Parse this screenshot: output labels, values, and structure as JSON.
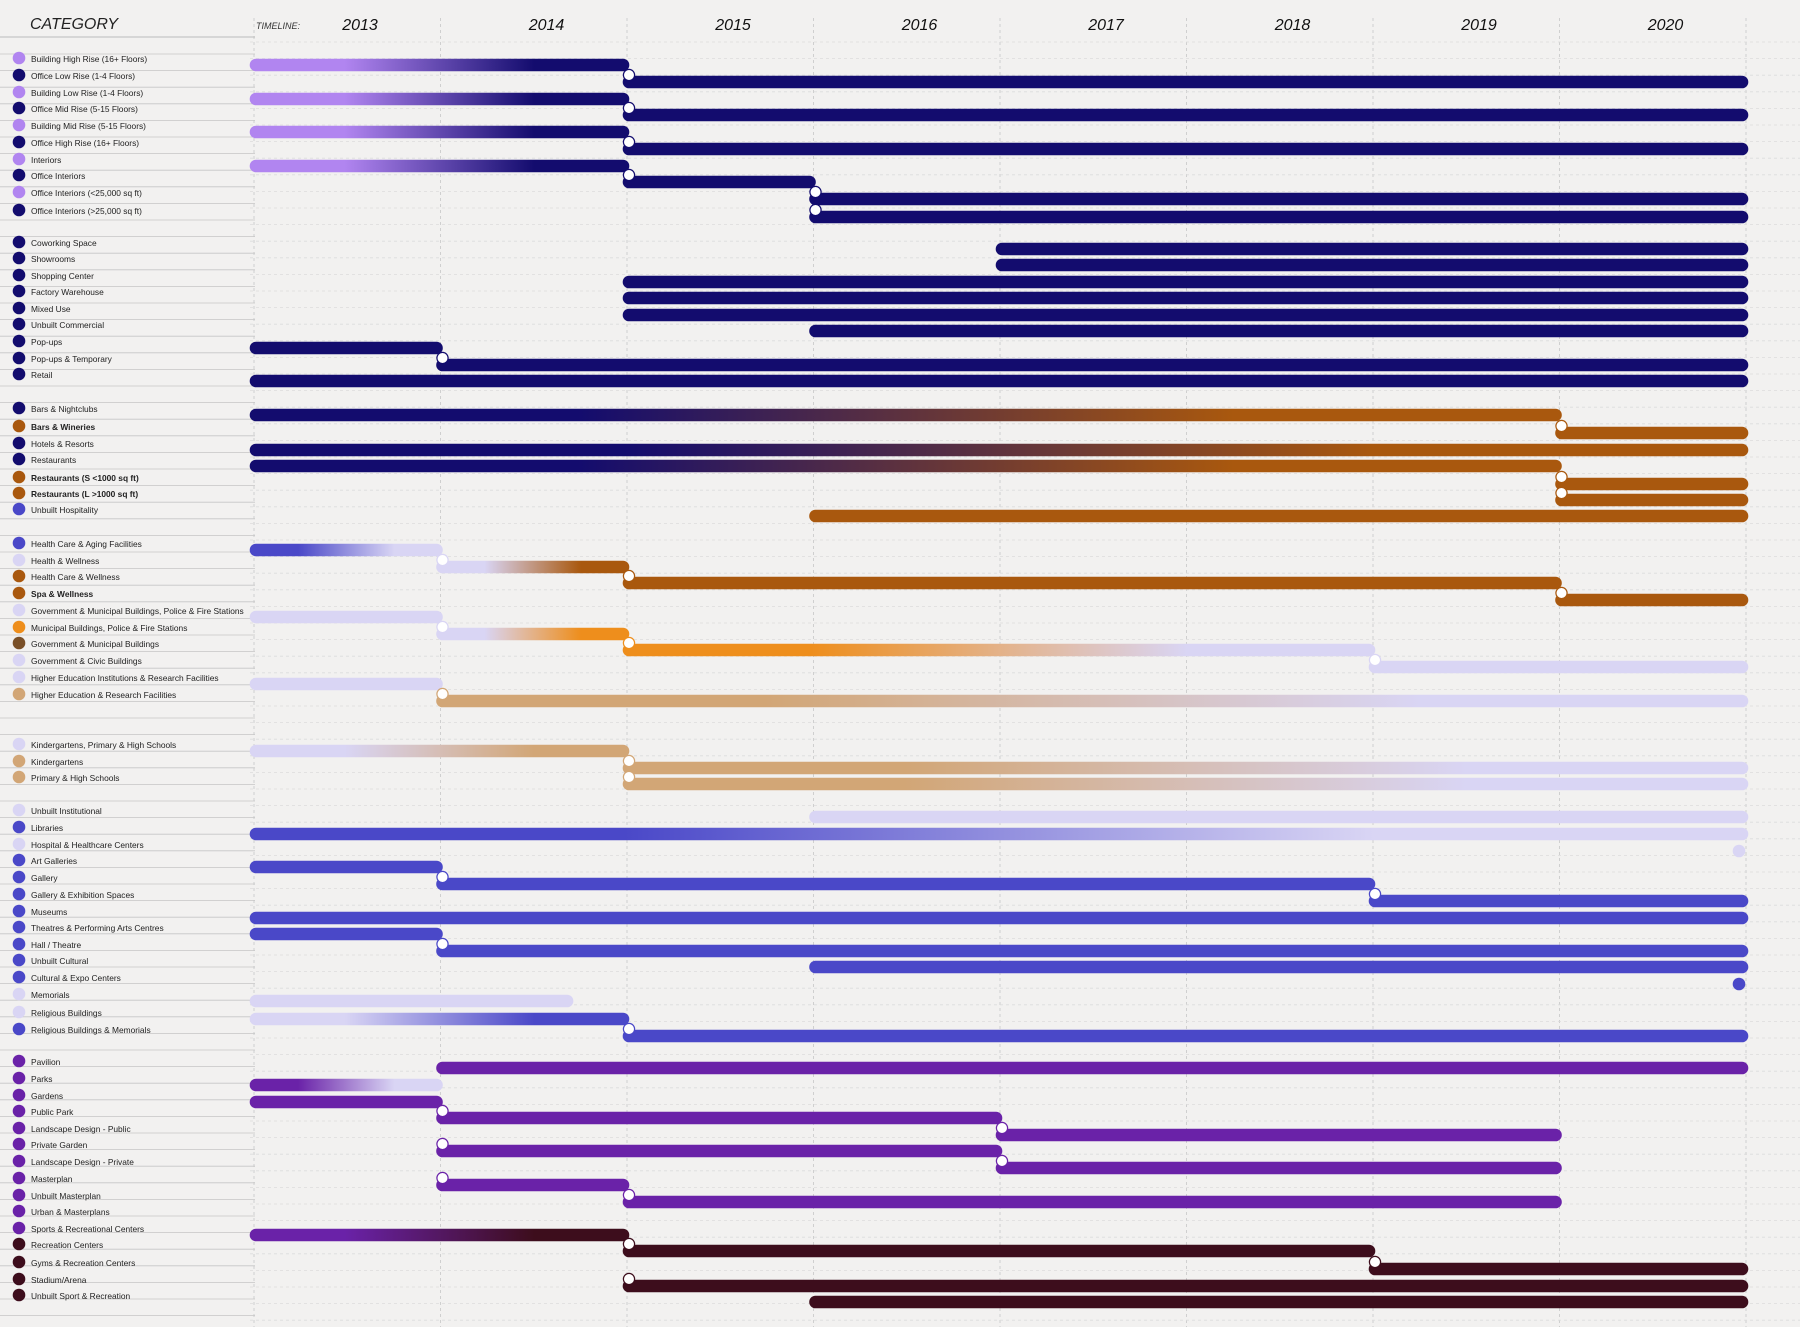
{
  "header": {
    "category_label": "CATEGORY",
    "timeline_label": "TIMELINE:"
  },
  "chart_data": {
    "type": "timeline",
    "x_unit": "year",
    "x_range": [
      2013,
      2021
    ],
    "x_ticks": [
      "2013",
      "2014",
      "2015",
      "2016",
      "2017",
      "2018",
      "2019",
      "2020"
    ],
    "colors": {
      "lilac": "#b185f0",
      "navy": "#130c6e",
      "brown": "#a9580e",
      "blue": "#4a48c8",
      "pale": "#d9d5f4",
      "orange": "#ee8e1c",
      "darkbrown": "#7a5028",
      "tan": "#d2a676",
      "purple": "#6a22a8",
      "maroon": "#3d0d1c"
    },
    "categories": [
      {
        "label": "Building High Rise (16+ Floors)",
        "dot": "lilac"
      },
      {
        "label": "Office Low Rise (1-4 Floors)",
        "dot": "navy"
      },
      {
        "label": "Building Low Rise (1-4 Floors)",
        "dot": "lilac"
      },
      {
        "label": "Office Mid Rise (5-15 Floors)",
        "dot": "navy"
      },
      {
        "label": "Building Mid Rise (5-15 Floors)",
        "dot": "lilac"
      },
      {
        "label": "Office High Rise (16+ Floors)",
        "dot": "navy"
      },
      {
        "label": "Interiors",
        "dot": "lilac"
      },
      {
        "label": "Office Interiors",
        "dot": "navy"
      },
      {
        "label": "Office Interiors (<25,000 sq ft)",
        "dot": "lilac"
      },
      {
        "label": "Office Interiors (>25,000 sq ft)",
        "dot": "navy"
      },
      {
        "label": "Coworking Space",
        "dot": "navy"
      },
      {
        "label": "Showrooms",
        "dot": "navy"
      },
      {
        "label": "Shopping Center",
        "dot": "navy"
      },
      {
        "label": "Factory Warehouse",
        "dot": "navy"
      },
      {
        "label": "Mixed Use",
        "dot": "navy"
      },
      {
        "label": "Unbuilt Commercial",
        "dot": "navy"
      },
      {
        "label": "Pop-ups",
        "dot": "navy"
      },
      {
        "label": "Pop-ups & Temporary",
        "dot": "navy"
      },
      {
        "label": "Retail",
        "dot": "navy"
      },
      {
        "label": "Bars & Nightclubs",
        "dot": "navy"
      },
      {
        "label": "Bars & Wineries",
        "dot": "brown",
        "bold": true
      },
      {
        "label": "Hotels & Resorts",
        "dot": "navy"
      },
      {
        "label": "Restaurants",
        "dot": "navy"
      },
      {
        "label": "Restaurants (S <1000 sq ft)",
        "dot": "brown",
        "bold": true
      },
      {
        "label": "Restaurants (L >1000 sq ft)",
        "dot": "brown",
        "bold": true
      },
      {
        "label": "Unbuilt Hospitality",
        "dot": "blue"
      },
      {
        "label": "Health Care & Aging Facilities",
        "dot": "blue"
      },
      {
        "label": "Health & Wellness",
        "dot": "pale"
      },
      {
        "label": "Health Care & Wellness",
        "dot": "brown"
      },
      {
        "label": "Spa & Wellness",
        "dot": "brown",
        "bold": true
      },
      {
        "label": "Government & Municipal Buildings, Police & Fire Stations",
        "dot": "pale"
      },
      {
        "label": "Municipal Buildings, Police & Fire Stations",
        "dot": "orange"
      },
      {
        "label": "Government & Municipal Buildings",
        "dot": "darkbrown"
      },
      {
        "label": "Government & Civic Buildings",
        "dot": "pale"
      },
      {
        "label": "Higher Education Institutions & Research Facilities",
        "dot": "pale"
      },
      {
        "label": "Higher Education & Research Facilities",
        "dot": "tan"
      },
      {
        "label": "Kindergartens, Primary & High Schools",
        "dot": "pale"
      },
      {
        "label": "Kindergartens",
        "dot": "tan"
      },
      {
        "label": "Primary & High Schools",
        "dot": "tan"
      },
      {
        "label": "Unbuilt Institutional",
        "dot": "pale"
      },
      {
        "label": "Libraries",
        "dot": "blue"
      },
      {
        "label": "Hospital & Healthcare Centers",
        "dot": "pale"
      },
      {
        "label": "Art Galleries",
        "dot": "blue"
      },
      {
        "label": "Gallery",
        "dot": "blue"
      },
      {
        "label": "Gallery & Exhibition Spaces",
        "dot": "blue"
      },
      {
        "label": "Museums",
        "dot": "blue"
      },
      {
        "label": "Theatres & Performing Arts Centres",
        "dot": "blue"
      },
      {
        "label": "Hall / Theatre",
        "dot": "blue"
      },
      {
        "label": "Unbuilt Cultural",
        "dot": "blue"
      },
      {
        "label": "Cultural & Expo Centers",
        "dot": "blue"
      },
      {
        "label": "Memorials",
        "dot": "pale"
      },
      {
        "label": "Religious Buildings",
        "dot": "pale"
      },
      {
        "label": "Religious Buildings & Memorials",
        "dot": "blue"
      },
      {
        "label": "Pavilion",
        "dot": "purple"
      },
      {
        "label": "Parks",
        "dot": "purple"
      },
      {
        "label": "Gardens",
        "dot": "purple"
      },
      {
        "label": "Public Park",
        "dot": "purple"
      },
      {
        "label": "Landscape Design - Public",
        "dot": "purple"
      },
      {
        "label": "Private Garden",
        "dot": "purple"
      },
      {
        "label": "Landscape Design - Private",
        "dot": "purple"
      },
      {
        "label": "Masterplan",
        "dot": "purple"
      },
      {
        "label": "Unbuilt Masterplan",
        "dot": "purple"
      },
      {
        "label": "Urban & Masterplans",
        "dot": "purple"
      },
      {
        "label": "Sports & Recreational Centers",
        "dot": "purple"
      },
      {
        "label": "Recreation Centers",
        "dot": "maroon"
      },
      {
        "label": "Gyms & Recreation Centers",
        "dot": "maroon"
      },
      {
        "label": "Stadium/Arena",
        "dot": "maroon"
      },
      {
        "label": "Unbuilt Sport & Recreation",
        "dot": "maroon"
      }
    ],
    "series": [
      {
        "row": 0,
        "from": 2013,
        "to": 2015,
        "color": "lilac",
        "to_color": "navy"
      },
      {
        "row": 1,
        "from": 2015,
        "to": 2021,
        "color": "navy",
        "start_marker": true
      },
      {
        "row": 2,
        "from": 2013,
        "to": 2015,
        "color": "lilac",
        "to_color": "navy"
      },
      {
        "row": 3,
        "from": 2015,
        "to": 2021,
        "color": "navy",
        "start_marker": true
      },
      {
        "row": 4,
        "from": 2013,
        "to": 2015,
        "color": "lilac",
        "to_color": "navy"
      },
      {
        "row": 5,
        "from": 2015,
        "to": 2021,
        "color": "navy",
        "start_marker": true
      },
      {
        "row": 6,
        "from": 2013,
        "to": 2015,
        "color": "lilac",
        "to_color": "navy"
      },
      {
        "row": 7,
        "from": 2015,
        "to": 2016,
        "color": "navy",
        "start_marker": true
      },
      {
        "row": 8,
        "from": 2016,
        "to": 2021,
        "color": "navy",
        "start_marker": true
      },
      {
        "row": 9,
        "from": 2016,
        "to": 2021,
        "color": "navy",
        "start_marker": true
      },
      {
        "row": 10,
        "from": 2017,
        "to": 2021,
        "color": "navy"
      },
      {
        "row": 11,
        "from": 2017,
        "to": 2021,
        "color": "navy"
      },
      {
        "row": 12,
        "from": 2015,
        "to": 2021,
        "color": "navy"
      },
      {
        "row": 13,
        "from": 2015,
        "to": 2021,
        "color": "navy"
      },
      {
        "row": 14,
        "from": 2015,
        "to": 2021,
        "color": "navy"
      },
      {
        "row": 15,
        "from": 2016,
        "to": 2021,
        "color": "navy"
      },
      {
        "row": 16,
        "from": 2013,
        "to": 2014,
        "color": "navy"
      },
      {
        "row": 17,
        "from": 2014,
        "to": 2021,
        "color": "navy",
        "start_marker": true
      },
      {
        "row": 18,
        "from": 2013,
        "to": 2021,
        "color": "navy"
      },
      {
        "row": 19,
        "from": 2013,
        "to": 2020,
        "color": "navy",
        "to_color": "brown"
      },
      {
        "row": 20,
        "from": 2020,
        "to": 2021,
        "color": "brown",
        "start_marker": true
      },
      {
        "row": 21,
        "from": 2013,
        "to": 2021,
        "color": "navy",
        "to_color": "brown"
      },
      {
        "row": 22,
        "from": 2013,
        "to": 2020,
        "color": "navy",
        "to_color": "brown"
      },
      {
        "row": 23,
        "from": 2020,
        "to": 2021,
        "color": "brown",
        "start_marker": true
      },
      {
        "row": 24,
        "from": 2020,
        "to": 2021,
        "color": "brown",
        "start_marker": true
      },
      {
        "row": 25,
        "from": 2016,
        "to": 2021,
        "color": "brown"
      },
      {
        "row": 26,
        "from": 2013,
        "to": 2014,
        "color": "blue",
        "to_color": "pale"
      },
      {
        "row": 27,
        "from": 2014,
        "to": 2015,
        "color": "pale",
        "to_color": "brown",
        "start_marker": true
      },
      {
        "row": 28,
        "from": 2015,
        "to": 2020,
        "color": "brown",
        "start_marker": true
      },
      {
        "row": 29,
        "from": 2020,
        "to": 2021,
        "color": "brown",
        "start_marker": true
      },
      {
        "row": 30,
        "from": 2013,
        "to": 2014,
        "color": "pale"
      },
      {
        "row": 31,
        "from": 2014,
        "to": 2015,
        "color": "pale",
        "to_color": "orange",
        "start_marker": true
      },
      {
        "row": 32,
        "from": 2015,
        "to": 2019,
        "color": "orange",
        "to_color": "pale",
        "start_marker": true
      },
      {
        "row": 33,
        "from": 2019,
        "to": 2021,
        "color": "pale",
        "start_marker": true
      },
      {
        "row": 34,
        "from": 2013,
        "to": 2014,
        "color": "pale"
      },
      {
        "row": 35,
        "from": 2014,
        "to": 2021,
        "color": "tan",
        "to_color": "pale",
        "start_marker": true
      },
      {
        "row": 36,
        "from": 2013,
        "to": 2015,
        "color": "pale",
        "to_color": "tan"
      },
      {
        "row": 37,
        "from": 2015,
        "to": 2021,
        "color": "tan",
        "to_color": "pale",
        "start_marker": true
      },
      {
        "row": 38,
        "from": 2015,
        "to": 2021,
        "color": "tan",
        "to_color": "pale",
        "start_marker": true
      },
      {
        "row": 39,
        "from": 2016,
        "to": 2021,
        "color": "pale"
      },
      {
        "row": 40,
        "from": 2013,
        "to": 2021,
        "color": "blue",
        "to_color": "pale"
      },
      {
        "row": 41,
        "from": 2021,
        "to": 2021,
        "color": "pale"
      },
      {
        "row": 42,
        "from": 2013,
        "to": 2014,
        "color": "blue"
      },
      {
        "row": 43,
        "from": 2014,
        "to": 2019,
        "color": "blue",
        "start_marker": true
      },
      {
        "row": 44,
        "from": 2019,
        "to": 2021,
        "color": "blue",
        "start_marker": true
      },
      {
        "row": 45,
        "from": 2013,
        "to": 2021,
        "color": "blue"
      },
      {
        "row": 46,
        "from": 2013,
        "to": 2014,
        "color": "blue"
      },
      {
        "row": 47,
        "from": 2014,
        "to": 2021,
        "color": "blue",
        "start_marker": true
      },
      {
        "row": 48,
        "from": 2016,
        "to": 2021,
        "color": "blue"
      },
      {
        "row": 49,
        "from": 2021,
        "to": 2021,
        "color": "blue"
      },
      {
        "row": 50,
        "from": 2013,
        "to": 2014.7,
        "color": "pale"
      },
      {
        "row": 51,
        "from": 2013,
        "to": 2015,
        "color": "pale",
        "to_color": "blue"
      },
      {
        "row": 52,
        "from": 2015,
        "to": 2021,
        "color": "blue",
        "start_marker": true
      },
      {
        "row": 53,
        "from": 2014,
        "to": 2021,
        "color": "purple"
      },
      {
        "row": 54,
        "from": 2013,
        "to": 2014,
        "color": "purple",
        "to_color": "pale"
      },
      {
        "row": 55,
        "from": 2013,
        "to": 2014,
        "color": "purple"
      },
      {
        "row": 56,
        "from": 2014,
        "to": 2017,
        "color": "purple",
        "start_marker": true
      },
      {
        "row": 57,
        "from": 2017,
        "to": 2020,
        "color": "purple",
        "start_marker": true
      },
      {
        "row": 58,
        "from": 2014,
        "to": 2017,
        "color": "purple",
        "start_marker": true
      },
      {
        "row": 59,
        "from": 2017,
        "to": 2020,
        "color": "purple",
        "start_marker": true
      },
      {
        "row": 60,
        "from": 2014,
        "to": 2015,
        "color": "purple",
        "start_marker": true
      },
      {
        "row": 61,
        "from": 2015,
        "to": 2020,
        "color": "purple",
        "start_marker": true
      },
      {
        "row": 63,
        "from": 2013,
        "to": 2015,
        "color": "purple",
        "to_color": "maroon"
      },
      {
        "row": 64,
        "from": 2015,
        "to": 2019,
        "color": "maroon",
        "start_marker": true
      },
      {
        "row": 65,
        "from": 2019,
        "to": 2021,
        "color": "maroon",
        "start_marker": true
      },
      {
        "row": 66,
        "from": 2015,
        "to": 2021,
        "color": "maroon",
        "start_marker": true
      },
      {
        "row": 67,
        "from": 2016,
        "to": 2021,
        "color": "maroon"
      }
    ]
  }
}
